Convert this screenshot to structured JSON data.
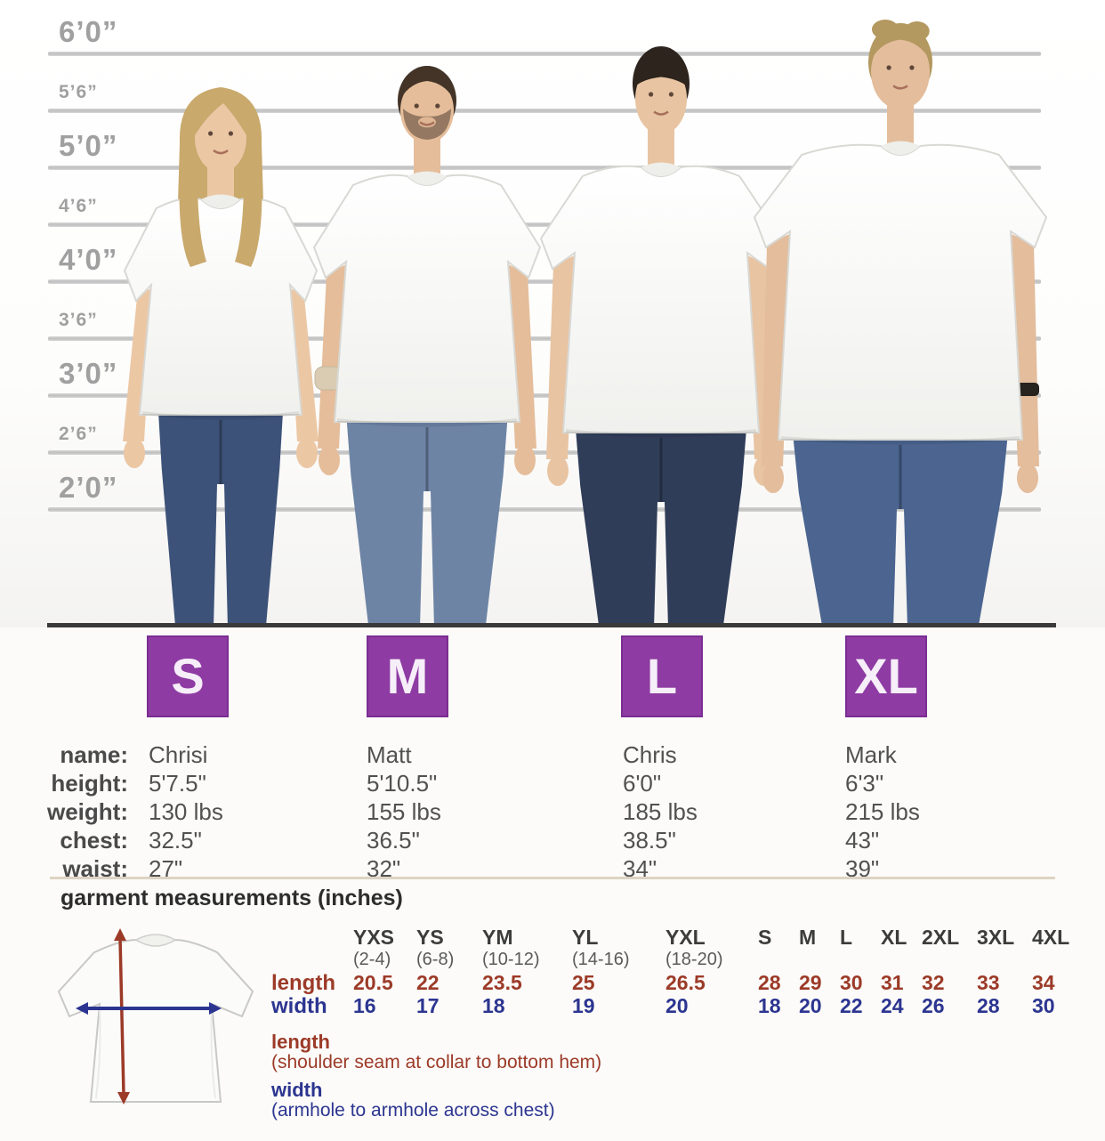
{
  "scale": {
    "markers": [
      {
        "label": "6’0”",
        "major": true
      },
      {
        "label": "5’6”",
        "major": false
      },
      {
        "label": "5’0”",
        "major": true
      },
      {
        "label": "4’6”",
        "major": false
      },
      {
        "label": "4’0”",
        "major": true
      },
      {
        "label": "3’6”",
        "major": false
      },
      {
        "label": "3’0”",
        "major": true
      },
      {
        "label": "2’6”",
        "major": false
      },
      {
        "label": "2’0”",
        "major": true
      }
    ]
  },
  "stat_labels": {
    "name": "name:",
    "height": "height:",
    "weight": "weight:",
    "chest": "chest:",
    "waist": "waist:"
  },
  "sizes": [
    {
      "badge": "S",
      "name": "Chrisi",
      "height": "5'7.5\"",
      "weight": "130 lbs",
      "chest": "32.5\"",
      "waist": "27\""
    },
    {
      "badge": "M",
      "name": "Matt",
      "height": "5'10.5\"",
      "weight": "155 lbs",
      "chest": "36.5\"",
      "waist": "32\""
    },
    {
      "badge": "L",
      "name": "Chris",
      "height": "6'0\"",
      "weight": "185 lbs",
      "chest": "38.5\"",
      "waist": "34\""
    },
    {
      "badge": "XL",
      "name": "Mark",
      "height": "6'3\"",
      "weight": "215 lbs",
      "chest": "43\"",
      "waist": "39\""
    }
  ],
  "garment": {
    "title": "garment measurements (inches)",
    "row_labels": {
      "length": "length",
      "width": "width"
    },
    "columns": [
      {
        "size": "YXS",
        "range": "(2-4)",
        "length": "20.5",
        "width": "16"
      },
      {
        "size": "YS",
        "range": "(6-8)",
        "length": "22",
        "width": "17"
      },
      {
        "size": "YM",
        "range": "(10-12)",
        "length": "23.5",
        "width": "18"
      },
      {
        "size": "YL",
        "range": "(14-16)",
        "length": "25",
        "width": "19"
      },
      {
        "size": "YXL",
        "range": "(18-20)",
        "length": "26.5",
        "width": "20"
      },
      {
        "size": "S",
        "range": "",
        "length": "28",
        "width": "18"
      },
      {
        "size": "M",
        "range": "",
        "length": "29",
        "width": "20"
      },
      {
        "size": "L",
        "range": "",
        "length": "30",
        "width": "22"
      },
      {
        "size": "XL",
        "range": "",
        "length": "31",
        "width": "24"
      },
      {
        "size": "2XL",
        "range": "",
        "length": "32",
        "width": "26"
      },
      {
        "size": "3XL",
        "range": "",
        "length": "33",
        "width": "28"
      },
      {
        "size": "4XL",
        "range": "",
        "length": "34",
        "width": "30"
      }
    ],
    "legend": {
      "length_title": "length",
      "length_desc": "(shoulder seam at collar to bottom hem)",
      "width_title": "width",
      "width_desc": "(armhole to armhole across chest)"
    }
  },
  "colors": {
    "badge": "#8e3ba3",
    "length": "#9c3a28",
    "width": "#2c3590",
    "scale_text": "#a0a0a0"
  }
}
